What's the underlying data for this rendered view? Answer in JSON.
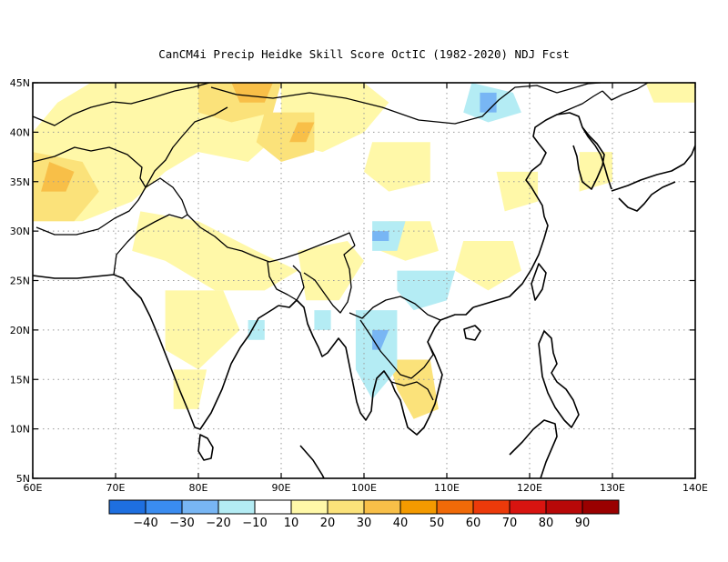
{
  "title": "CanCM4i Precip Heidke Skill Score OctIC (1982-2020) NDJ Fcst",
  "map": {
    "lon_range": [
      60,
      140
    ],
    "lat_range": [
      5,
      45
    ],
    "lon_ticks": [
      {
        "value": 60,
        "label": "60E"
      },
      {
        "value": 70,
        "label": "70E"
      },
      {
        "value": 80,
        "label": "80E"
      },
      {
        "value": 90,
        "label": "90E"
      },
      {
        "value": 100,
        "label": "100E"
      },
      {
        "value": 110,
        "label": "110E"
      },
      {
        "value": 120,
        "label": "120E"
      },
      {
        "value": 130,
        "label": "130E"
      },
      {
        "value": 140,
        "label": "140E"
      }
    ],
    "lat_ticks": [
      {
        "value": 5,
        "label": "5N"
      },
      {
        "value": 10,
        "label": "10N"
      },
      {
        "value": 15,
        "label": "15N"
      },
      {
        "value": 20,
        "label": "20N"
      },
      {
        "value": 25,
        "label": "25N"
      },
      {
        "value": 30,
        "label": "30N"
      },
      {
        "value": 35,
        "label": "35N"
      },
      {
        "value": 40,
        "label": "40N"
      },
      {
        "value": 45,
        "label": "45N"
      }
    ],
    "grid": "dotted"
  },
  "colorbar": {
    "colors": [
      "#1e6fe0",
      "#3a8cf0",
      "#78b6f4",
      "#b4ecf4",
      "#ffffff",
      "#fff8a8",
      "#fbe27a",
      "#f8bf48",
      "#f49a00",
      "#f06a08",
      "#ec3a0a",
      "#d81410",
      "#b80808",
      "#9a0000"
    ],
    "labels": [
      "−40",
      "−30",
      "−20",
      "−10",
      "10",
      "20",
      "30",
      "40",
      "50",
      "60",
      "70",
      "80",
      "90"
    ]
  },
  "chart_data": {
    "type": "heatmap",
    "title": "CanCM4i Precip Heidke Skill Score OctIC (1982-2020) NDJ Fcst",
    "x_range": [
      60,
      140
    ],
    "y_range": [
      5,
      45
    ],
    "levels": [
      -40,
      -30,
      -20,
      -10,
      10,
      20,
      30,
      40,
      50,
      60,
      70,
      80,
      90
    ],
    "regions": [
      {
        "bin": "10 to 20",
        "polygon": [
          [
            60,
            40
          ],
          [
            63,
            43
          ],
          [
            67,
            45
          ],
          [
            85,
            45
          ],
          [
            88,
            44
          ],
          [
            90,
            40
          ],
          [
            86,
            37
          ],
          [
            80,
            38
          ],
          [
            76,
            36
          ],
          [
            72,
            33
          ],
          [
            66,
            31
          ],
          [
            60,
            31
          ]
        ]
      },
      {
        "bin": "10 to 20",
        "polygon": [
          [
            90,
            45
          ],
          [
            100,
            45
          ],
          [
            103,
            43
          ],
          [
            100,
            40
          ],
          [
            95,
            38
          ],
          [
            90,
            39
          ]
        ]
      },
      {
        "bin": "10 to 20",
        "polygon": [
          [
            101,
            39
          ],
          [
            108,
            39
          ],
          [
            108,
            35
          ],
          [
            103,
            34
          ],
          [
            100,
            36
          ]
        ]
      },
      {
        "bin": "10 to 20",
        "polygon": [
          [
            73,
            32
          ],
          [
            80,
            31
          ],
          [
            87,
            28
          ],
          [
            92,
            26
          ],
          [
            88,
            24
          ],
          [
            82,
            24
          ],
          [
            76,
            27
          ],
          [
            72,
            28
          ]
        ]
      },
      {
        "bin": "10 to 20",
        "polygon": [
          [
            76,
            24
          ],
          [
            83,
            24
          ],
          [
            85,
            20
          ],
          [
            80,
            16
          ],
          [
            76,
            18
          ]
        ]
      },
      {
        "bin": "10 to 20",
        "polygon": [
          [
            77,
            16
          ],
          [
            81,
            16
          ],
          [
            80,
            12
          ],
          [
            77,
            12
          ]
        ]
      },
      {
        "bin": "10 to 20",
        "polygon": [
          [
            92,
            28
          ],
          [
            98,
            29
          ],
          [
            100,
            27
          ],
          [
            97,
            23
          ],
          [
            93,
            23
          ]
        ]
      },
      {
        "bin": "10 to 20",
        "polygon": [
          [
            103,
            31
          ],
          [
            108,
            31
          ],
          [
            109,
            28
          ],
          [
            105,
            27
          ],
          [
            102,
            28
          ]
        ]
      },
      {
        "bin": "10 to 20",
        "polygon": [
          [
            112,
            29
          ],
          [
            118,
            29
          ],
          [
            119,
            26
          ],
          [
            115,
            24
          ],
          [
            111,
            26
          ]
        ]
      },
      {
        "bin": "10 to 20",
        "polygon": [
          [
            116,
            36
          ],
          [
            121,
            36
          ],
          [
            121,
            33
          ],
          [
            117,
            32
          ]
        ]
      },
      {
        "bin": "10 to 20",
        "polygon": [
          [
            126,
            38
          ],
          [
            130,
            38
          ],
          [
            130,
            35
          ],
          [
            126,
            34
          ]
        ]
      },
      {
        "bin": "10 to 20",
        "polygon": [
          [
            134,
            45
          ],
          [
            140,
            45
          ],
          [
            140,
            43
          ],
          [
            135,
            43
          ]
        ]
      },
      {
        "bin": "20 to 30",
        "polygon": [
          [
            60,
            38
          ],
          [
            66,
            37
          ],
          [
            68,
            34
          ],
          [
            65,
            31
          ],
          [
            60,
            31
          ]
        ]
      },
      {
        "bin": "20 to 30",
        "polygon": [
          [
            80,
            45
          ],
          [
            90,
            45
          ],
          [
            89,
            42
          ],
          [
            84,
            41
          ],
          [
            80,
            42
          ]
        ]
      },
      {
        "bin": "20 to 30",
        "polygon": [
          [
            88,
            42
          ],
          [
            94,
            42
          ],
          [
            94,
            38
          ],
          [
            90,
            37
          ],
          [
            87,
            39
          ]
        ]
      },
      {
        "bin": "20 to 30",
        "polygon": [
          [
            103,
            17
          ],
          [
            108,
            17
          ],
          [
            109,
            12
          ],
          [
            106,
            11
          ],
          [
            104,
            14
          ]
        ]
      },
      {
        "bin": "30 to 40",
        "polygon": [
          [
            62,
            37
          ],
          [
            65,
            36
          ],
          [
            64,
            34
          ],
          [
            61,
            34
          ]
        ]
      },
      {
        "bin": "30 to 40",
        "polygon": [
          [
            84,
            45
          ],
          [
            89,
            45
          ],
          [
            88,
            43
          ],
          [
            85,
            43
          ]
        ]
      },
      {
        "bin": "30 to 40",
        "polygon": [
          [
            92,
            41
          ],
          [
            94,
            41
          ],
          [
            93,
            39
          ],
          [
            91,
            39
          ]
        ]
      },
      {
        "bin": "-20 to -10",
        "polygon": [
          [
            113,
            45
          ],
          [
            118,
            44
          ],
          [
            119,
            42
          ],
          [
            115,
            41
          ],
          [
            112,
            42
          ]
        ]
      },
      {
        "bin": "-20 to -10",
        "polygon": [
          [
            99,
            22
          ],
          [
            104,
            22
          ],
          [
            104,
            16
          ],
          [
            101,
            13
          ],
          [
            99,
            16
          ]
        ]
      },
      {
        "bin": "-20 to -10",
        "polygon": [
          [
            104,
            26
          ],
          [
            111,
            26
          ],
          [
            110,
            23
          ],
          [
            106,
            22
          ],
          [
            104,
            24
          ]
        ]
      },
      {
        "bin": "-20 to -10",
        "polygon": [
          [
            101,
            31
          ],
          [
            105,
            31
          ],
          [
            104,
            28
          ],
          [
            101,
            28
          ]
        ]
      },
      {
        "bin": "-20 to -10",
        "polygon": [
          [
            94,
            22
          ],
          [
            96,
            22
          ],
          [
            96,
            20
          ],
          [
            94,
            20
          ]
        ]
      },
      {
        "bin": "-20 to -10",
        "polygon": [
          [
            86,
            21
          ],
          [
            88,
            21
          ],
          [
            88,
            19
          ],
          [
            86,
            19
          ]
        ]
      },
      {
        "bin": "-30 to -20",
        "polygon": [
          [
            114,
            44
          ],
          [
            116,
            44
          ],
          [
            116,
            42
          ],
          [
            114,
            42
          ]
        ]
      },
      {
        "bin": "-30 to -20",
        "polygon": [
          [
            101,
            30
          ],
          [
            103,
            30
          ],
          [
            103,
            29
          ],
          [
            101,
            29
          ]
        ]
      },
      {
        "bin": "-30 to -20",
        "polygon": [
          [
            101,
            20
          ],
          [
            103,
            20
          ],
          [
            102,
            18
          ],
          [
            101,
            18
          ]
        ]
      }
    ]
  }
}
